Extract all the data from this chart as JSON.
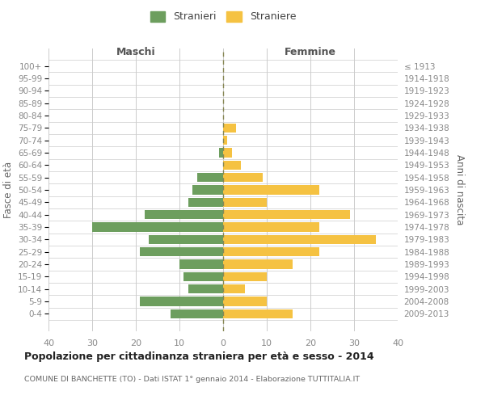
{
  "age_groups": [
    "100+",
    "95-99",
    "90-94",
    "85-89",
    "80-84",
    "75-79",
    "70-74",
    "65-69",
    "60-64",
    "55-59",
    "50-54",
    "45-49",
    "40-44",
    "35-39",
    "30-34",
    "25-29",
    "20-24",
    "15-19",
    "10-14",
    "5-9",
    "0-4"
  ],
  "birth_years": [
    "≤ 1913",
    "1914-1918",
    "1919-1923",
    "1924-1928",
    "1929-1933",
    "1934-1938",
    "1939-1943",
    "1944-1948",
    "1949-1953",
    "1954-1958",
    "1959-1963",
    "1964-1968",
    "1969-1973",
    "1974-1978",
    "1979-1983",
    "1984-1988",
    "1989-1993",
    "1994-1998",
    "1999-2003",
    "2004-2008",
    "2009-2013"
  ],
  "males": [
    0,
    0,
    0,
    0,
    0,
    0,
    0,
    1,
    0,
    6,
    7,
    8,
    18,
    30,
    17,
    19,
    10,
    9,
    8,
    19,
    12
  ],
  "females": [
    0,
    0,
    0,
    0,
    0,
    3,
    1,
    2,
    4,
    9,
    22,
    10,
    29,
    22,
    35,
    22,
    16,
    10,
    5,
    10,
    16
  ],
  "male_color": "#6d9e5e",
  "female_color": "#f5c242",
  "background_color": "#ffffff",
  "grid_color": "#cccccc",
  "center_line_color": "#888855",
  "title": "Popolazione per cittadinanza straniera per età e sesso - 2014",
  "subtitle": "COMUNE DI BANCHETTE (TO) - Dati ISTAT 1° gennaio 2014 - Elaborazione TUTTITALIA.IT",
  "xlabel_left": "Maschi",
  "xlabel_right": "Femmine",
  "ylabel_left": "Fasce di età",
  "ylabel_right": "Anni di nascita",
  "legend_male": "Stranieri",
  "legend_female": "Straniere",
  "xlim": 40,
  "bar_height": 0.75
}
